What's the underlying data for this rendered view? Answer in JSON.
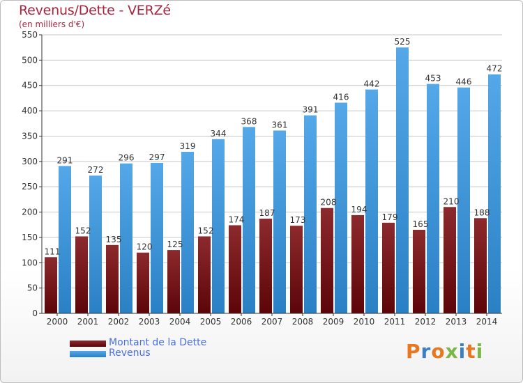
{
  "header": {
    "title": "Revenus/Dette - VERZé",
    "subtitle": "(en milliers d'€)"
  },
  "legend": {
    "items": [
      {
        "label": "Montant de la Dette",
        "color": "#7a1a1d"
      },
      {
        "label": "Revenus",
        "color": "#3d97dc"
      }
    ]
  },
  "logo": {
    "text": "Proxiti",
    "colors": [
      "#e87722",
      "#3b7fc4",
      "#e87722",
      "#7ab648",
      "#3b7fc4",
      "#e87722",
      "#7ab648"
    ]
  },
  "colors": {
    "title": "#a8243f",
    "legend_text": "#4a6fe3",
    "grid": "#c8c8c8",
    "axis": "#333333"
  },
  "chart_data": {
    "type": "bar",
    "categories": [
      "2000",
      "2001",
      "2002",
      "2003",
      "2004",
      "2005",
      "2006",
      "2007",
      "2008",
      "2009",
      "2010",
      "2011",
      "2012",
      "2013",
      "2014"
    ],
    "series": [
      {
        "name": "Montant de la Dette",
        "values": [
          111,
          152,
          135,
          120,
          125,
          152,
          174,
          187,
          173,
          208,
          194,
          179,
          165,
          210,
          188
        ]
      },
      {
        "name": "Revenus",
        "values": [
          291,
          272,
          296,
          297,
          319,
          344,
          368,
          361,
          391,
          416,
          442,
          525,
          453,
          446,
          472
        ]
      }
    ],
    "ylim": [
      0,
      550
    ],
    "yticks": [
      0,
      50,
      100,
      150,
      200,
      250,
      300,
      350,
      400,
      450,
      500,
      550
    ],
    "grid": "horizontal",
    "legend_position": "bottom-left",
    "title": "Revenus/Dette - VERZé",
    "subtitle": "(en milliers d'€)"
  }
}
